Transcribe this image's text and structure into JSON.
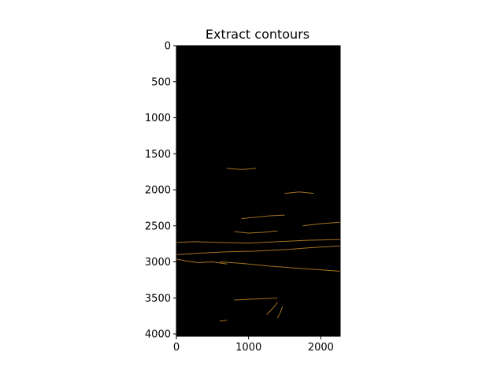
{
  "chart_data": {
    "type": "heatmap",
    "title": "Extract contours",
    "xlabel": "",
    "ylabel": "",
    "xlim": [
      0,
      2268
    ],
    "ylim": [
      4032,
      0
    ],
    "x_ticks": [
      0,
      1000,
      2000
    ],
    "x_tick_labels": [
      "0",
      "1000",
      "2000"
    ],
    "y_ticks": [
      0,
      500,
      1000,
      1500,
      2000,
      2500,
      3000,
      3500,
      4000
    ],
    "y_tick_labels": [
      "0",
      "500",
      "1000",
      "1500",
      "2000",
      "2500",
      "3000",
      "3500",
      "4000"
    ],
    "background_color": "#000000",
    "contour_color": "#d9982b",
    "grid": false,
    "image_extent": {
      "width": 2268,
      "height": 4032
    }
  }
}
